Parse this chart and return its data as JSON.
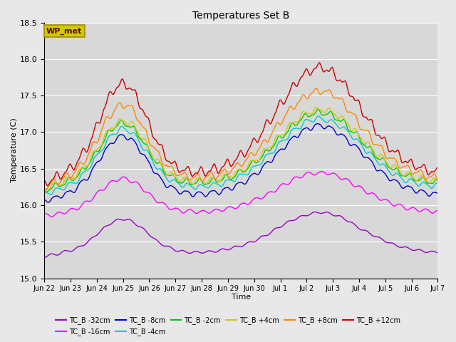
{
  "title": "Temperatures Set B",
  "xlabel": "Time",
  "ylabel": "Temperature (C)",
  "ylim": [
    15.0,
    18.5
  ],
  "yticks": [
    15.0,
    15.5,
    16.0,
    16.5,
    17.0,
    17.5,
    18.0,
    18.5
  ],
  "series_labels": [
    "TC_B -32cm",
    "TC_B -16cm",
    "TC_B -8cm",
    "TC_B -4cm",
    "TC_B -2cm",
    "TC_B +4cm",
    "TC_B +8cm",
    "TC_B +12cm"
  ],
  "series_colors": [
    "#9900cc",
    "#ff00ff",
    "#0000cc",
    "#00cccc",
    "#00cc00",
    "#cccc00",
    "#ff8800",
    "#cc0000"
  ],
  "xtick_labels": [
    "Jun 22",
    "Jun 23",
    "Jun 24",
    "Jun 25",
    "Jun 26",
    "Jun 27",
    "Jun 28",
    "Jun 29",
    "Jun 30",
    "Jul 1",
    "Jul 2",
    "Jul 3",
    "Jul 4",
    "Jul 5",
    "Jul 6",
    "Jul 7"
  ],
  "wp_met_box_color": "#cccc00",
  "wp_met_text_color": "#660000",
  "bg_color": "#e8e8e8",
  "plot_bg_color": "#d8d8d8",
  "n_points": 960,
  "figsize": [
    6.4,
    4.8
  ],
  "dpi": 100
}
